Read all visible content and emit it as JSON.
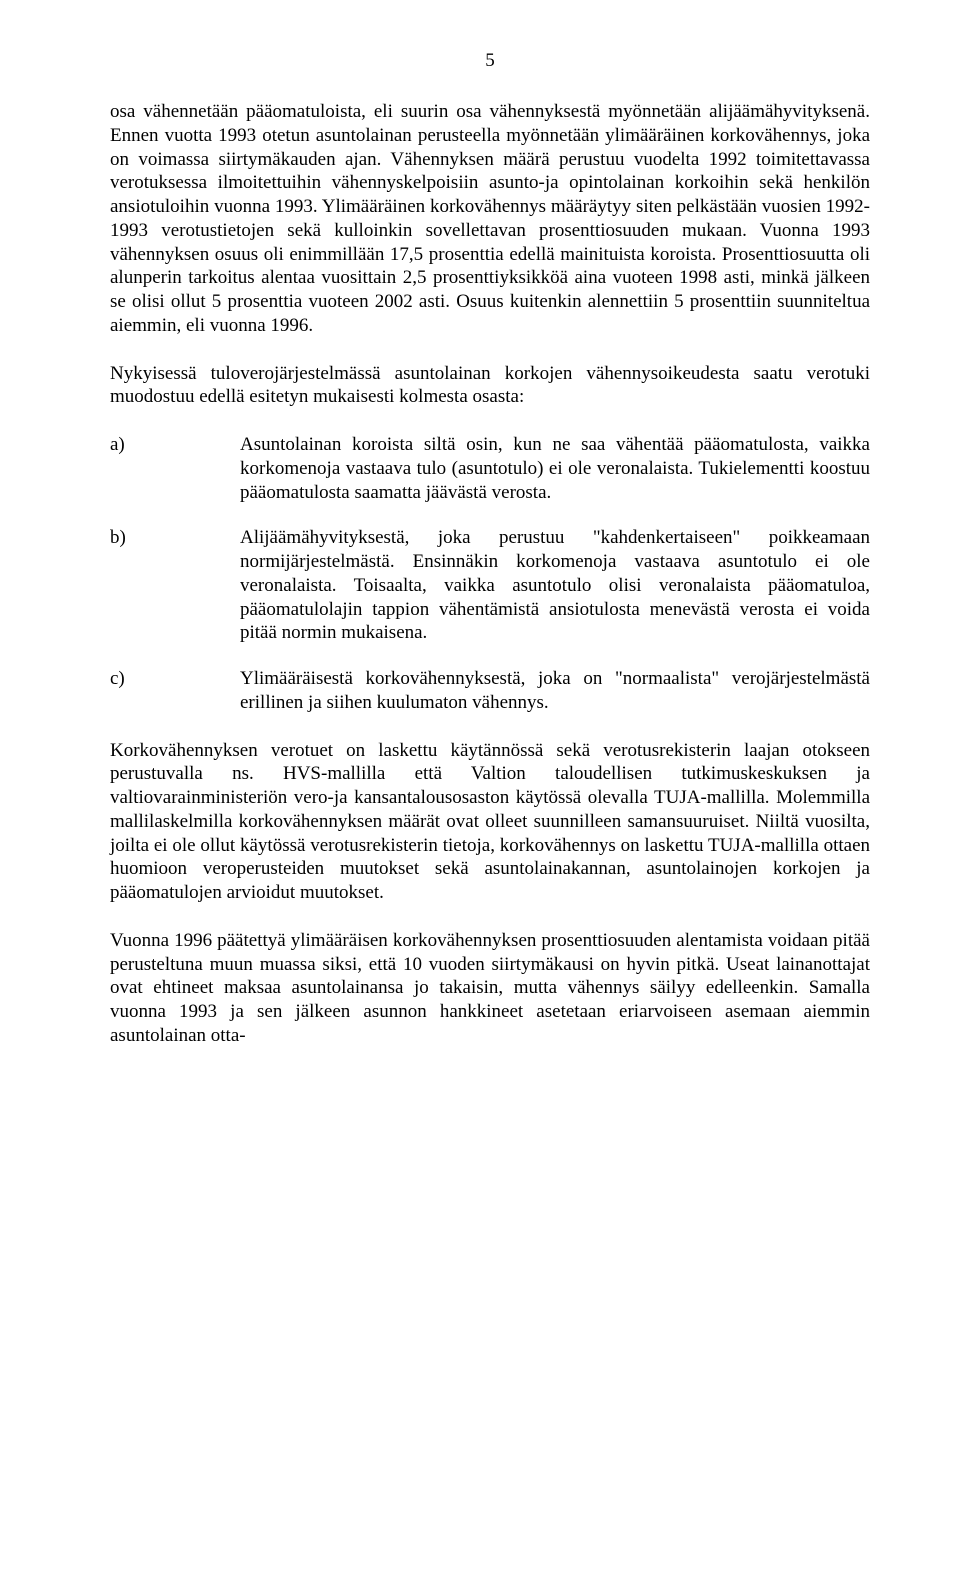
{
  "page_number": "5",
  "paragraphs": {
    "p1": "osa vähennetään pääomatuloista, eli suurin osa vähennyksestä myönnetään alijäämähyvityksenä. Ennen vuotta 1993 otetun asuntolainan perusteella myönnetään ylimääräinen korkovähennys, joka on voimassa siirtymäkauden ajan. Vähennyksen määrä perustuu vuodelta 1992 toimitettavassa verotuksessa ilmoitettuihin vähennyskelpoisiin asunto-ja opintolainan korkoihin sekä henkilön ansiotuloihin vuonna 1993. Ylimääräinen korkovähennys määräytyy siten pelkästään vuosien 1992-1993 verotustietojen sekä kulloinkin sovellettavan prosenttiosuuden mukaan. Vuonna 1993 vähennyksen osuus oli enimmillään 17,5 prosenttia edellä mainituista koroista. Prosenttiosuutta oli alunperin tarkoitus alentaa vuosittain 2,5 prosenttiyksikköä aina vuoteen 1998 asti, minkä jälkeen se olisi ollut 5 prosenttia vuoteen 2002 asti. Osuus kuitenkin alennettiin 5 prosenttiin suunniteltua aiemmin, eli vuonna 1996.",
    "p2": "Nykyisessä tuloverojärjestelmässä asuntolainan korkojen vähennysoikeudesta saatu verotuki muodostuu edellä esitetyn mukaisesti kolmesta osasta:",
    "p3": "Korkovähennyksen verotuet on laskettu käytännössä sekä verotusrekisterin laajan otokseen perustuvalla ns. HVS-mallilla että Valtion taloudellisen tutkimuskeskuksen ja valtiovarainministeriön vero-ja kansantalousosaston käytössä olevalla TUJA-mallilla. Molemmilla mallilaskelmilla korkovähennyksen määrät ovat olleet suunnilleen samansuuruiset. Niiltä vuosilta, joilta ei ole ollut käytössä verotusrekisterin tietoja, korkovähennys on laskettu TUJA-mallilla ottaen huomioon veroperusteiden muutokset sekä asuntolainakannan, asuntolainojen korkojen ja pääomatulojen arvioidut muutokset.",
    "p4": "Vuonna 1996 päätettyä ylimääräisen korkovähennyksen prosenttiosuuden alentamista voidaan pitää perusteltuna muun muassa siksi, että 10 vuoden siirtymäkausi on hyvin pitkä. Useat lainanottajat ovat ehtineet maksaa asuntolainansa jo takaisin, mutta vähennys säilyy edelleenkin. Samalla vuonna 1993 ja sen jälkeen asunnon hankkineet asetetaan eriarvoiseen asemaan aiemmin asuntolainan otta-"
  },
  "list": {
    "a": {
      "marker": "a)",
      "text": "Asuntolainan koroista siltä osin, kun ne saa vähentää pääomatulosta, vaikka korkomenoja vastaava tulo (asuntotulo) ei ole veronalaista. Tukielementti koostuu pääomatulosta saamatta jäävästä verosta."
    },
    "b": {
      "marker": "b)",
      "text": "Alijäämähyvityksestä, joka perustuu \"kahdenkertaiseen\" poikkeamaan normijärjestelmästä. Ensinnäkin korkomenoja vastaava asuntotulo ei ole veronalaista. Toisaalta, vaikka asuntotulo olisi veronalaista pääomatuloa, pääomatulolajin tappion vähentämistä ansiotulosta menevästä verosta ei voida pitää normin mukaisena."
    },
    "c": {
      "marker": "c)",
      "text": "Ylimääräisestä korkovähennyksestä, joka on \"normaalista\" verojärjestelmästä erillinen ja siihen kuulumaton vähennys."
    }
  }
}
